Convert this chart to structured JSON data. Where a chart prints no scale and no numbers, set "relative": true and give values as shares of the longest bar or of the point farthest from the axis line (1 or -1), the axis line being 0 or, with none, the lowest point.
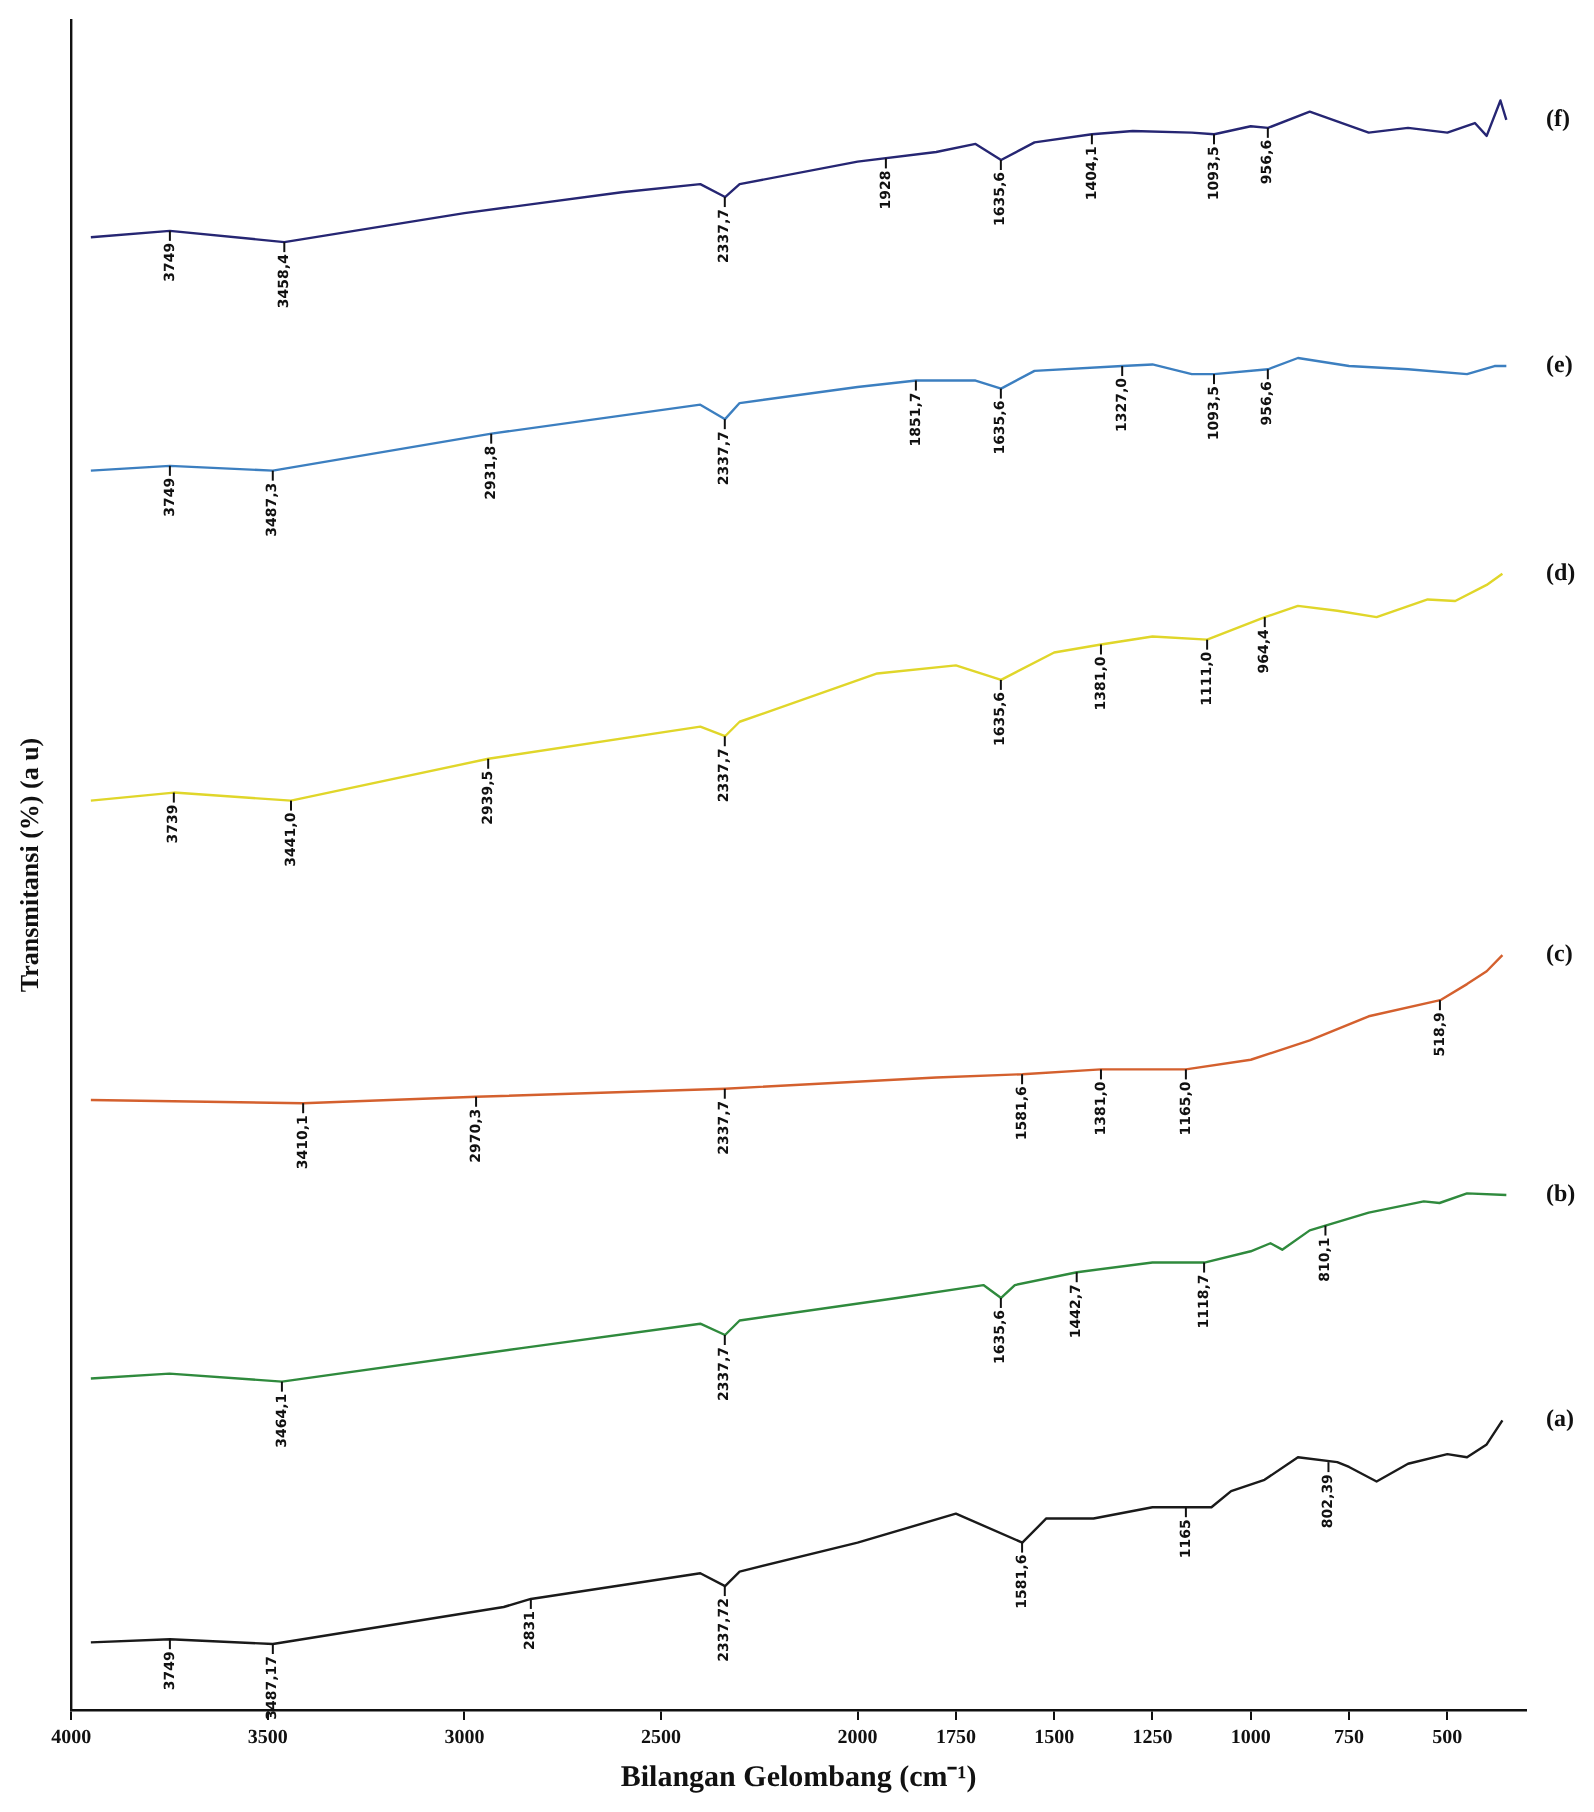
{
  "chart_data": {
    "type": "line",
    "relative": true,
    "xlabel": "Bilangan Gelombang (cm⁻¹)",
    "ylabel": "Transmitansi (%) (a u)",
    "xlim": [
      4000,
      300
    ],
    "xticks": [
      4000,
      3500,
      3000,
      2500,
      2000,
      1750,
      1500,
      1250,
      1000,
      750,
      500
    ],
    "legend": false,
    "tick_labels": "x",
    "series": [
      {
        "name": "(f)",
        "color": "#262673",
        "x": [
          3950,
          3749,
          3458,
          3000,
          2600,
          2400,
          2337,
          2300,
          2000,
          1800,
          1700,
          1635,
          1550,
          1404,
          1300,
          1150,
          1093,
          1000,
          956,
          850,
          700,
          600,
          500,
          430,
          400,
          365,
          350
        ],
        "values": [
          0.915,
          0.919,
          0.912,
          0.93,
          0.943,
          0.948,
          0.94,
          0.948,
          0.962,
          0.968,
          0.973,
          0.963,
          0.974,
          0.979,
          0.981,
          0.98,
          0.979,
          0.984,
          0.983,
          0.993,
          0.98,
          0.983,
          0.98,
          0.986,
          0.978,
          1.0,
          0.988
        ]
      },
      {
        "name": "(e)",
        "color": "#3c7fc0",
        "x": [
          3950,
          3749,
          3487,
          2931,
          2400,
          2337,
          2300,
          2000,
          1851,
          1700,
          1635,
          1550,
          1327,
          1250,
          1150,
          1093,
          956,
          880,
          750,
          600,
          450,
          380,
          350
        ],
        "values": [
          0.77,
          0.773,
          0.77,
          0.793,
          0.811,
          0.802,
          0.812,
          0.822,
          0.826,
          0.826,
          0.821,
          0.832,
          0.835,
          0.836,
          0.83,
          0.83,
          0.833,
          0.84,
          0.835,
          0.833,
          0.83,
          0.835,
          0.835
        ]
      },
      {
        "name": "(d)",
        "color": "#e0d62a",
        "x": [
          3950,
          3739,
          3441,
          2939,
          2400,
          2337,
          2300,
          1950,
          1750,
          1635,
          1500,
          1381,
          1250,
          1111,
          964,
          880,
          780,
          680,
          550,
          480,
          400,
          360
        ],
        "values": [
          0.565,
          0.57,
          0.565,
          0.591,
          0.611,
          0.605,
          0.614,
          0.644,
          0.649,
          0.64,
          0.657,
          0.662,
          0.667,
          0.665,
          0.679,
          0.686,
          0.683,
          0.679,
          0.69,
          0.689,
          0.699,
          0.706
        ]
      },
      {
        "name": "(c)",
        "color": "#d4602e",
        "x": [
          3950,
          3410,
          2970,
          2337,
          1800,
          1581,
          1381,
          1165,
          1000,
          850,
          700,
          518,
          450,
          400,
          360
        ],
        "values": [
          0.379,
          0.377,
          0.381,
          0.386,
          0.393,
          0.395,
          0.398,
          0.398,
          0.404,
          0.416,
          0.431,
          0.441,
          0.451,
          0.459,
          0.469
        ]
      },
      {
        "name": "(b)",
        "color": "#2f8a3d",
        "x": [
          3950,
          3750,
          3464,
          2850,
          2400,
          2337,
          2300,
          1900,
          1680,
          1635,
          1600,
          1442,
          1250,
          1118,
          1000,
          950,
          920,
          850,
          810,
          700,
          560,
          520,
          450,
          350
        ],
        "values": [
          0.206,
          0.209,
          0.204,
          0.225,
          0.24,
          0.233,
          0.242,
          0.256,
          0.264,
          0.256,
          0.264,
          0.272,
          0.278,
          0.278,
          0.285,
          0.29,
          0.286,
          0.298,
          0.301,
          0.309,
          0.316,
          0.315,
          0.321,
          0.32
        ]
      },
      {
        "name": "(a)",
        "color": "#1a1a1a",
        "x": [
          3950,
          3749,
          3487,
          2900,
          2831,
          2400,
          2337,
          2300,
          2000,
          1750,
          1581,
          1520,
          1400,
          1250,
          1100,
          1050,
          965,
          880,
          780,
          750,
          680,
          600,
          500,
          450,
          400,
          360
        ],
        "values": [
          0.042,
          0.044,
          0.041,
          0.064,
          0.069,
          0.085,
          0.077,
          0.086,
          0.104,
          0.122,
          0.104,
          0.119,
          0.119,
          0.126,
          0.126,
          0.136,
          0.143,
          0.157,
          0.154,
          0.151,
          0.142,
          0.153,
          0.159,
          0.157,
          0.165,
          0.18
        ]
      }
    ],
    "annotations": [
      {
        "text": "3749",
        "x": 3749,
        "y": 0.919
      },
      {
        "text": "3458,4",
        "x": 3458,
        "y": 0.912
      },
      {
        "text": "2337,7",
        "x": 2337.7,
        "y": 0.94
      },
      {
        "text": "1928",
        "x": 1928,
        "y": 0.964
      },
      {
        "text": "1635,6",
        "x": 1635.6,
        "y": 0.963
      },
      {
        "text": "1404,1",
        "x": 1404.1,
        "y": 0.979
      },
      {
        "text": "1093,5",
        "x": 1093.5,
        "y": 0.979
      },
      {
        "text": "956,6",
        "x": 956.6,
        "y": 0.983
      },
      {
        "text": "3749",
        "x": 3749,
        "y": 0.773
      },
      {
        "text": "3487,3",
        "x": 3487.3,
        "y": 0.77
      },
      {
        "text": "2931,8",
        "x": 2931.8,
        "y": 0.793
      },
      {
        "text": "2337,7",
        "x": 2337.7,
        "y": 0.802
      },
      {
        "text": "1851,7",
        "x": 1851.7,
        "y": 0.826
      },
      {
        "text": "1635,6",
        "x": 1635.6,
        "y": 0.821
      },
      {
        "text": "1327,0",
        "x": 1327,
        "y": 0.835
      },
      {
        "text": "1093,5",
        "x": 1093.5,
        "y": 0.83
      },
      {
        "text": "956,6",
        "x": 956.6,
        "y": 0.833
      },
      {
        "text": "3739",
        "x": 3739,
        "y": 0.57
      },
      {
        "text": "3441,0",
        "x": 3441,
        "y": 0.565
      },
      {
        "text": "2939,5",
        "x": 2939.5,
        "y": 0.591
      },
      {
        "text": "2337,7",
        "x": 2337.7,
        "y": 0.605
      },
      {
        "text": "1635,6",
        "x": 1635.6,
        "y": 0.64
      },
      {
        "text": "1381,0",
        "x": 1381,
        "y": 0.662
      },
      {
        "text": "1111,0",
        "x": 1111,
        "y": 0.665
      },
      {
        "text": "964,4",
        "x": 964.4,
        "y": 0.679
      },
      {
        "text": "3410,1",
        "x": 3410.1,
        "y": 0.377
      },
      {
        "text": "2970,3",
        "x": 2970.3,
        "y": 0.381
      },
      {
        "text": "2337,7",
        "x": 2337.7,
        "y": 0.386
      },
      {
        "text": "1581,6",
        "x": 1581.6,
        "y": 0.395
      },
      {
        "text": "1381,0",
        "x": 1381,
        "y": 0.398
      },
      {
        "text": "1165,0",
        "x": 1165,
        "y": 0.398
      },
      {
        "text": "518,9",
        "x": 518.9,
        "y": 0.441
      },
      {
        "text": "3464,1",
        "x": 3464.1,
        "y": 0.204
      },
      {
        "text": "2337,7",
        "x": 2337.7,
        "y": 0.233
      },
      {
        "text": "1635,6",
        "x": 1635.6,
        "y": 0.256
      },
      {
        "text": "1442,7",
        "x": 1442.7,
        "y": 0.272
      },
      {
        "text": "1118,7",
        "x": 1118.7,
        "y": 0.278
      },
      {
        "text": "810,1",
        "x": 810.1,
        "y": 0.301
      },
      {
        "text": "3749",
        "x": 3749,
        "y": 0.044
      },
      {
        "text": "3487,17",
        "x": 3487.17,
        "y": 0.041
      },
      {
        "text": "2831",
        "x": 2831,
        "y": 0.069
      },
      {
        "text": "2337,72",
        "x": 2337.72,
        "y": 0.077
      },
      {
        "text": "1581,6",
        "x": 1581.6,
        "y": 0.104
      },
      {
        "text": "1165",
        "x": 1165,
        "y": 0.126
      },
      {
        "text": "802,39",
        "x": 802.39,
        "y": 0.154
      }
    ]
  }
}
